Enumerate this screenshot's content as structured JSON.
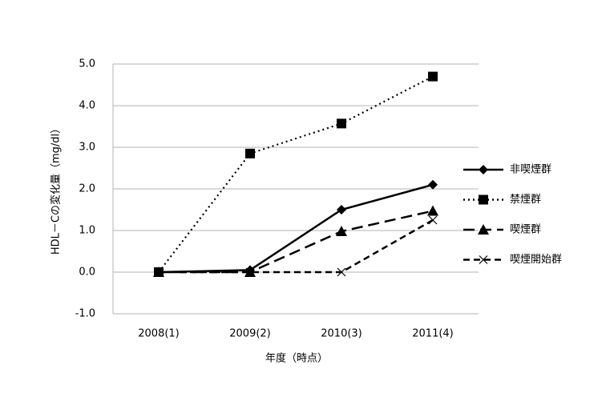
{
  "chart_data": {
    "type": "line",
    "x_label": "年度（時点）",
    "y_label": "HDL－Cの変化量（mg/dl）",
    "categories": [
      "2008(1)",
      "2009(2)",
      "2010(3)",
      "2011(4)"
    ],
    "ylim": [
      -1,
      5
    ],
    "yticks": [
      {
        "value": -1,
        "label": "-1.0"
      },
      {
        "value": 0,
        "label": "0.0"
      },
      {
        "value": 1,
        "label": "1.0"
      },
      {
        "value": 2,
        "label": "2.0"
      },
      {
        "value": 3,
        "label": "3.0"
      },
      {
        "value": 4,
        "label": "4.0"
      },
      {
        "value": 5,
        "label": "5.0"
      }
    ],
    "grid": true,
    "legend": "right",
    "series": [
      {
        "name": "非喫煙群",
        "color": "#000000",
        "marker": "diamond",
        "dash": "solid",
        "values": [
          0,
          0.05,
          1.5,
          2.1
        ]
      },
      {
        "name": "禁煙群",
        "color": "#000000",
        "marker": "square",
        "dash": "dotted",
        "values": [
          0,
          2.85,
          3.57,
          4.7
        ]
      },
      {
        "name": "喫煙群",
        "color": "#000000",
        "marker": "triangle",
        "dash": "dashed",
        "values": [
          0,
          0,
          0.98,
          1.47
        ]
      },
      {
        "name": "喫煙開始群",
        "color": "#000000",
        "marker": "x",
        "dash": "short-dash",
        "values": [
          0,
          0,
          0,
          1.25
        ]
      }
    ]
  }
}
